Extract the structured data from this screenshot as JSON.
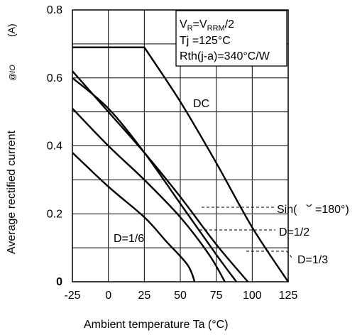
{
  "chart_data": {
    "type": "line",
    "xlabel": "Ambient temperature  Ta  (°C)",
    "ylabel": "Average rectified current",
    "ylabel_unit": "(A)",
    "ylabel_symbol": "@IO",
    "xlim": [
      -25,
      125
    ],
    "ylim": [
      0,
      0.8
    ],
    "x_ticks": [
      "-25",
      "0",
      "25",
      "50",
      "75",
      "100",
      "125"
    ],
    "y_ticks": [
      "0",
      "0.2",
      "0.4",
      "0.6",
      "0.8"
    ],
    "grid": true,
    "conditions": {
      "line1_main": "V",
      "line1_sub1": "R",
      "line1_mid": "=V",
      "line1_sub2": "RRM",
      "line1_end": "/2",
      "line2": "Tj =125°C",
      "line3": "Rth(j-a)=340°C/W"
    },
    "series": [
      {
        "name": "DC",
        "x": [
          -25,
          25,
          50,
          75,
          100,
          125
        ],
        "y": [
          0.69,
          0.69,
          0.53,
          0.35,
          0.16,
          0.0
        ]
      },
      {
        "name": "Sin(θ=180°)",
        "x": [
          -25,
          0,
          25,
          50,
          75,
          97
        ],
        "y": [
          0.62,
          0.5,
          0.38,
          0.25,
          0.11,
          0.0
        ]
      },
      {
        "name": "D=1/2",
        "x": [
          -25,
          0,
          25,
          50,
          75,
          89
        ],
        "y": [
          0.6,
          0.51,
          0.38,
          0.23,
          0.08,
          0.0
        ]
      },
      {
        "name": "D=1/3",
        "x": [
          -25,
          0,
          25,
          50,
          70,
          81
        ],
        "y": [
          0.51,
          0.4,
          0.3,
          0.19,
          0.08,
          0.0
        ]
      },
      {
        "name": "D=1/6",
        "x": [
          -25,
          0,
          25,
          40,
          55,
          60
        ],
        "y": [
          0.38,
          0.28,
          0.19,
          0.12,
          0.05,
          0.0
        ]
      }
    ],
    "curve_labels": {
      "dc": "DC",
      "sin": "Sin(",
      "sin_end": "=180°)",
      "half": "D=1/2",
      "third": "D=1/3",
      "sixth": "D=1/6"
    }
  }
}
